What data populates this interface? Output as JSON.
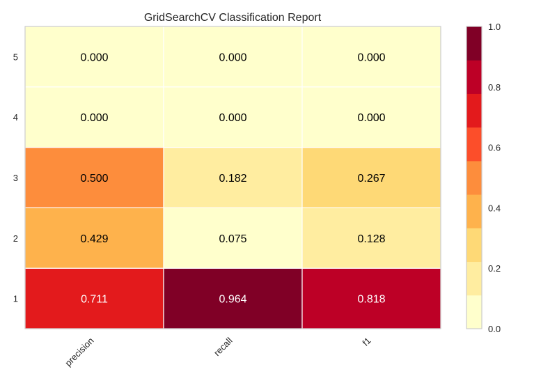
{
  "chart_data": {
    "type": "heatmap",
    "title": "GridSearchCV Classification Report",
    "xlabel": "",
    "ylabel": "",
    "columns": [
      "precision",
      "recall",
      "f1"
    ],
    "rows": [
      "1",
      "2",
      "3",
      "4",
      "5"
    ],
    "values": [
      [
        0.711,
        0.964,
        0.818
      ],
      [
        0.429,
        0.075,
        0.128
      ],
      [
        0.5,
        0.182,
        0.267
      ],
      [
        0.0,
        0.0,
        0.0
      ],
      [
        0.0,
        0.0,
        0.0
      ]
    ],
    "value_labels": [
      [
        "0.711",
        "0.964",
        "0.818"
      ],
      [
        "0.429",
        "0.075",
        "0.128"
      ],
      [
        "0.500",
        "0.182",
        "0.267"
      ],
      [
        "0.000",
        "0.000",
        "0.000"
      ],
      [
        "0.000",
        "0.000",
        "0.000"
      ]
    ],
    "colorbar": {
      "range": [
        0.0,
        1.0
      ],
      "ticks": [
        "0.0",
        "0.2",
        "0.4",
        "0.6",
        "0.8",
        "1.0"
      ],
      "tick_values": [
        0.0,
        0.2,
        0.4,
        0.6,
        0.8,
        1.0
      ],
      "colors": [
        "#ffffcc",
        "#ffeda0",
        "#fed976",
        "#feb24c",
        "#fd8d3c",
        "#fc4e2a",
        "#e31a1c",
        "#bd0026",
        "#800026"
      ]
    },
    "colormap": "YlOrRd",
    "grid": false
  }
}
